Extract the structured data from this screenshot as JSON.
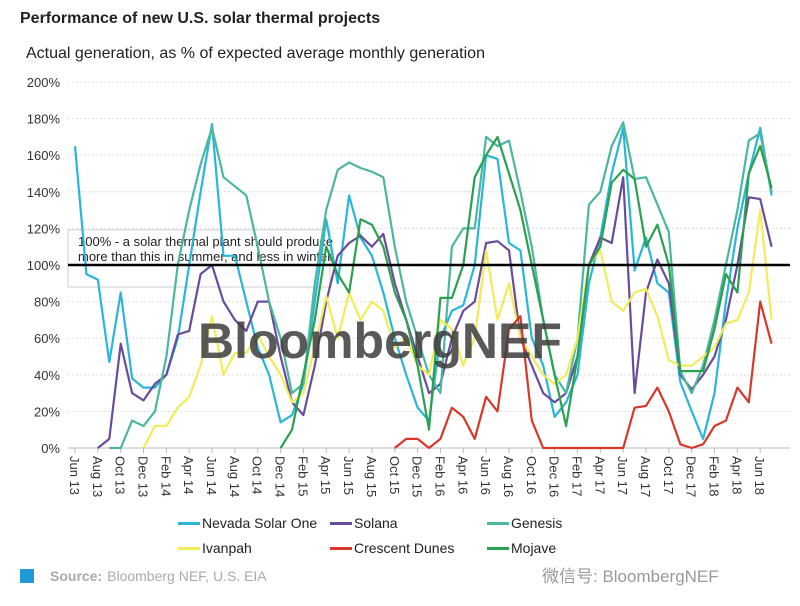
{
  "chart_data": {
    "type": "line",
    "title": "Performance of new U.S. solar thermal projects",
    "subtitle": "Actual generation, as % of expected average monthly generation",
    "xlabel": "",
    "ylabel": "",
    "ylim": [
      0,
      200
    ],
    "yticks": [
      "0%",
      "20%",
      "40%",
      "60%",
      "80%",
      "100%",
      "120%",
      "140%",
      "160%",
      "180%",
      "200%"
    ],
    "xtick_labels": [
      "Jun 13",
      "Aug 13",
      "Oct 13",
      "Dec 13",
      "Feb 14",
      "Apr 14",
      "Jun 14",
      "Aug 14",
      "Oct 14",
      "Dec 14",
      "Feb 15",
      "Apr 15",
      "Jun 15",
      "Aug 15",
      "Oct 15",
      "Dec 15",
      "Feb 16",
      "Apr 16",
      "Jun 16",
      "Aug 16",
      "Oct 16",
      "Dec 16",
      "Feb 17",
      "Apr 17",
      "Jun 17",
      "Aug 17",
      "Oct 17",
      "Dec 17",
      "Feb 18",
      "Apr 18",
      "Jun 18"
    ],
    "x_start": "Jun 13",
    "x_interval": "monthly",
    "grid": true,
    "legend_placement": "bottom",
    "reference_line": {
      "value": 100,
      "label": "100% - a solar thermal plant should produce more than this in summer, and less in winter"
    },
    "series": [
      {
        "name": "Nevada Solar One",
        "color": "#29b6d8",
        "values": [
          165,
          95,
          92,
          47,
          85,
          38,
          33,
          33,
          40,
          60,
          100,
          140,
          177,
          105,
          105,
          80,
          55,
          40,
          14,
          18,
          35,
          80,
          125,
          90,
          138,
          115,
          105,
          85,
          60,
          40,
          22,
          15,
          60,
          75,
          78,
          100,
          160,
          158,
          112,
          108,
          60,
          45,
          17,
          25,
          40,
          90,
          115,
          150,
          175,
          97,
          115,
          90,
          85,
          36,
          20,
          5,
          30,
          80,
          120,
          150,
          175,
          138
        ]
      },
      {
        "name": "Solana",
        "color": "#6a4c9c",
        "values": [
          null,
          null,
          0,
          5,
          57,
          30,
          26,
          35,
          40,
          62,
          64,
          95,
          100,
          80,
          70,
          64,
          80,
          80,
          50,
          25,
          18,
          45,
          80,
          105,
          112,
          116,
          110,
          117,
          90,
          70,
          50,
          30,
          35,
          60,
          75,
          80,
          112,
          113,
          108,
          60,
          45,
          30,
          25,
          30,
          50,
          100,
          115,
          112,
          148,
          30,
          85,
          103,
          90,
          40,
          32,
          40,
          50,
          70,
          100,
          137,
          136,
          110
        ]
      },
      {
        "name": "Genesis",
        "color": "#4db6a0",
        "values": [
          null,
          null,
          null,
          0,
          0,
          15,
          12,
          20,
          50,
          100,
          130,
          155,
          175,
          148,
          143,
          138,
          110,
          80,
          60,
          30,
          35,
          90,
          130,
          152,
          156,
          153,
          151,
          148,
          110,
          80,
          60,
          40,
          30,
          110,
          120,
          120,
          170,
          165,
          168,
          140,
          110,
          70,
          40,
          30,
          60,
          133,
          140,
          165,
          178,
          147,
          148,
          133,
          118,
          42,
          30,
          45,
          70,
          100,
          130,
          168,
          172,
          140
        ]
      },
      {
        "name": "Ivanpah",
        "color": "#f2ec5a",
        "values": [
          null,
          null,
          null,
          null,
          null,
          null,
          0,
          12,
          12,
          22,
          28,
          45,
          72,
          40,
          52,
          52,
          62,
          50,
          40,
          25,
          30,
          55,
          83,
          60,
          85,
          70,
          80,
          75,
          55,
          60,
          45,
          40,
          70,
          65,
          45,
          60,
          108,
          70,
          90,
          60,
          50,
          40,
          35,
          40,
          60,
          100,
          108,
          80,
          75,
          85,
          87,
          72,
          48,
          45,
          45,
          50,
          55,
          68,
          70,
          85,
          130,
          70
        ]
      },
      {
        "name": "Crescent Dunes",
        "color": "#d6382c",
        "values": [
          null,
          null,
          null,
          null,
          null,
          null,
          null,
          null,
          null,
          null,
          null,
          null,
          null,
          null,
          null,
          null,
          null,
          null,
          null,
          null,
          null,
          null,
          null,
          null,
          null,
          null,
          null,
          null,
          0,
          5,
          5,
          0,
          5,
          22,
          17,
          5,
          28,
          20,
          65,
          72,
          15,
          0,
          0,
          0,
          0,
          0,
          0,
          0,
          0,
          22,
          23,
          33,
          20,
          2,
          0,
          2,
          12,
          15,
          33,
          25,
          80,
          57
        ]
      },
      {
        "name": "Mojave",
        "color": "#2aa050",
        "values": [
          null,
          null,
          null,
          null,
          null,
          null,
          null,
          null,
          null,
          null,
          null,
          null,
          null,
          null,
          null,
          null,
          null,
          null,
          0,
          10,
          40,
          70,
          110,
          95,
          85,
          125,
          122,
          110,
          85,
          70,
          45,
          10,
          82,
          82,
          100,
          148,
          160,
          170,
          150,
          130,
          100,
          70,
          40,
          12,
          50,
          100,
          110,
          145,
          152,
          147,
          110,
          122,
          100,
          42,
          42,
          42,
          65,
          95,
          85,
          150,
          165,
          142
        ]
      }
    ]
  },
  "watermark": "BloombergNEF",
  "footer": {
    "source_label": "Source:",
    "source_text": "Bloomberg NEF, U.S. EIA",
    "wechat": "微信号: BloombergNEF"
  }
}
